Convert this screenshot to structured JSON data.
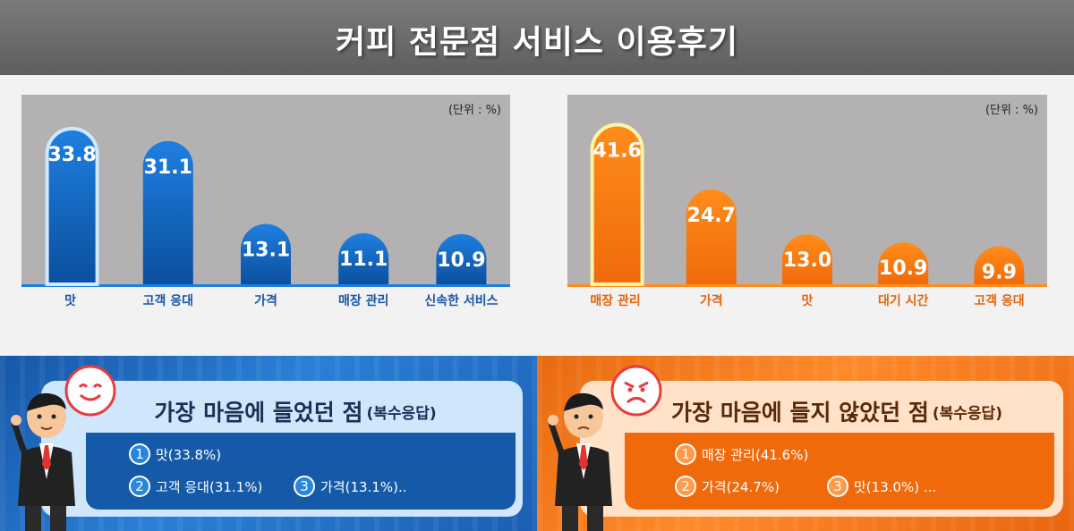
{
  "title": "커피 전문점 서비스 이용후기",
  "unit_label": "(단위 : %)",
  "colors": {
    "left_bar_top": "#1f7fe0",
    "left_bar_bottom": "#0b4f9e",
    "right_bar_top": "#ff8c1a",
    "right_bar_bottom": "#f06a0b",
    "plot_bg": "#b4b1b2"
  },
  "chart_data": [
    {
      "type": "bar",
      "categories": [
        "맛",
        "고객 응대",
        "가격",
        "매장 관리",
        "신속한 서비스"
      ],
      "values": [
        33.8,
        31.1,
        13.1,
        11.1,
        10.9
      ],
      "ylim": [
        0,
        40
      ],
      "highlight_index": 0
    },
    {
      "type": "bar",
      "categories": [
        "매장 관리",
        "가격",
        "맛",
        "대기 시간",
        "고객 응대"
      ],
      "values": [
        41.6,
        24.7,
        13.0,
        10.9,
        9.9
      ],
      "ylim": [
        0,
        48
      ],
      "highlight_index": 0
    }
  ],
  "liked": {
    "title_main": "가장 마음에 들었던 점",
    "title_sub": "(복수응답)",
    "items": [
      {
        "num": "1",
        "text": "맛(33.8%)"
      },
      {
        "num": "2",
        "text": "고객 응대(31.1%)"
      },
      {
        "num": "3",
        "text": "가격(13.1%).."
      }
    ],
    "face_icon": "smiley-face-icon"
  },
  "disliked": {
    "title_main": "가장 마음에 들지 않았던 점",
    "title_sub": "(복수응답)",
    "items": [
      {
        "num": "1",
        "text": "매장 관리(41.6%)"
      },
      {
        "num": "2",
        "text": "가격(24.7%)"
      },
      {
        "num": "3",
        "text": "맛(13.0%) ..."
      }
    ],
    "face_icon": "angry-face-icon"
  }
}
